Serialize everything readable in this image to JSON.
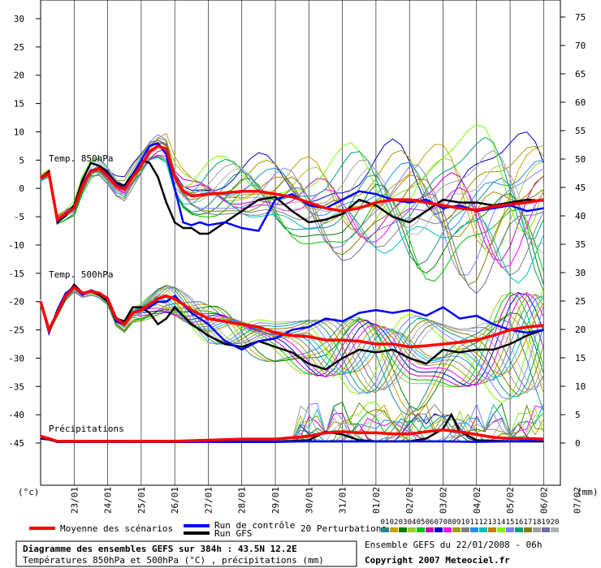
{
  "chart_data": {
    "type": "line",
    "title": "Diagramme des ensembles GEFS sur 384h : 43.5N 12.2E",
    "subtitle": "Températures 850hPa et 500hPa (°C) , précipitations (mm)",
    "run_info": "Ensemble GEFS du 22/01/2008 - 06h",
    "copyright": "Copyright 2007 Meteociel.fr",
    "left_axis_unit": "(°c)",
    "right_axis_unit": "(mm)",
    "left_ticks": [
      30,
      25,
      20,
      15,
      10,
      5,
      0,
      -5,
      -10,
      -15,
      -20,
      -25,
      -30,
      -35,
      -40,
      -45
    ],
    "right_ticks": [
      75,
      70,
      65,
      60,
      55,
      50,
      45,
      40,
      35,
      30,
      25,
      20,
      15,
      10,
      5,
      0
    ],
    "x_dates": [
      "23/01",
      "24/01",
      "25/01",
      "26/01",
      "27/01",
      "28/01",
      "29/01",
      "30/01",
      "31/01",
      "01/02",
      "02/02",
      "03/02",
      "04/02",
      "05/02",
      "06/02",
      "07/02"
    ],
    "panel_labels": [
      "Temp. 850hPa",
      "Temp. 500hPa",
      "Précipitations"
    ],
    "legend": {
      "mean": "Moyenne des scénarios",
      "control": "Run de contrôle",
      "gfs": "Run GFS",
      "perturbations": "20 Perturbations",
      "perturbation_ids": [
        "01",
        "02",
        "03",
        "04",
        "05",
        "06",
        "07",
        "08",
        "09",
        "10",
        "11",
        "12",
        "13",
        "14",
        "15",
        "16",
        "17",
        "18",
        "19",
        "20"
      ]
    },
    "colors": {
      "mean": "#ff0000",
      "control": "#0000ff",
      "gfs": "#000000",
      "perturbations": [
        "#228b8b",
        "#c8a000",
        "#008000",
        "#9acd32",
        "#00c800",
        "#c000c0",
        "#0000c8",
        "#ff00ff",
        "#a0a000",
        "#808080",
        "#1e90ff",
        "#00c0c0",
        "#c08000",
        "#7cfc00",
        "#8080ff",
        "#00a080",
        "#808000",
        "#a0a0a0",
        "#7070a0",
        "#b0b0b0"
      ]
    },
    "t850": {
      "mean": [
        [
          0,
          1.8
        ],
        [
          0.25,
          2.6
        ],
        [
          0.5,
          -5.5
        ],
        [
          0.75,
          -4.5
        ],
        [
          1,
          -3.5
        ],
        [
          1.25,
          0.5
        ],
        [
          1.5,
          3
        ],
        [
          1.75,
          3.5
        ],
        [
          2,
          2.2
        ],
        [
          2.25,
          0.5
        ],
        [
          2.5,
          -0.2
        ],
        [
          2.75,
          2
        ],
        [
          3,
          4
        ],
        [
          3.25,
          6.5
        ],
        [
          3.5,
          7.5
        ],
        [
          3.75,
          7
        ],
        [
          4,
          2
        ],
        [
          4.25,
          -0.5
        ],
        [
          4.5,
          -1.3
        ],
        [
          4.75,
          -1.2
        ],
        [
          5,
          -1
        ],
        [
          5.5,
          -0.8
        ],
        [
          6,
          -0.5
        ],
        [
          6.5,
          -0.5
        ],
        [
          7,
          -1
        ],
        [
          7.5,
          -1.5
        ],
        [
          8,
          -2.5
        ],
        [
          8.5,
          -3.5
        ],
        [
          9,
          -4
        ],
        [
          9.5,
          -3.5
        ],
        [
          10,
          -2.5
        ],
        [
          10.5,
          -2
        ],
        [
          11,
          -2
        ],
        [
          11.5,
          -2.5
        ],
        [
          12,
          -3
        ],
        [
          12.5,
          -3.5
        ],
        [
          13,
          -3.8
        ],
        [
          13.5,
          -3.2
        ],
        [
          14,
          -2.8
        ],
        [
          14.5,
          -2.5
        ],
        [
          15,
          -2
        ]
      ],
      "control": [
        [
          0,
          1.8
        ],
        [
          0.25,
          2.6
        ],
        [
          0.5,
          -5.8
        ],
        [
          0.75,
          -4.5
        ],
        [
          1,
          -3.5
        ],
        [
          1.25,
          0.8
        ],
        [
          1.5,
          3.2
        ],
        [
          1.75,
          3.5
        ],
        [
          2,
          2.5
        ],
        [
          2.25,
          0.8
        ],
        [
          2.5,
          0
        ],
        [
          2.75,
          2.2
        ],
        [
          3,
          5
        ],
        [
          3.25,
          7.5
        ],
        [
          3.5,
          8
        ],
        [
          3.75,
          6
        ],
        [
          4,
          0
        ],
        [
          4.25,
          -6
        ],
        [
          4.5,
          -6.5
        ],
        [
          4.75,
          -6
        ],
        [
          5,
          -6.5
        ],
        [
          5.5,
          -6
        ],
        [
          6,
          -7
        ],
        [
          6.5,
          -7.5
        ],
        [
          7,
          -2
        ],
        [
          7.5,
          -1
        ],
        [
          8,
          -3
        ],
        [
          8.5,
          -3.5
        ],
        [
          9,
          -2
        ],
        [
          9.5,
          -0.5
        ],
        [
          10,
          -1
        ],
        [
          10.5,
          -2
        ],
        [
          11,
          -2.5
        ],
        [
          11.5,
          -2
        ],
        [
          12,
          -3.5
        ],
        [
          12.5,
          -3
        ],
        [
          13,
          -4
        ],
        [
          13.5,
          -3.5
        ],
        [
          14,
          -3
        ],
        [
          14.5,
          -4
        ],
        [
          15,
          -3.5
        ]
      ],
      "gfs": [
        [
          0,
          1.8
        ],
        [
          0.25,
          3
        ],
        [
          0.5,
          -6
        ],
        [
          0.75,
          -4.8
        ],
        [
          1,
          -3
        ],
        [
          1.25,
          1.5
        ],
        [
          1.5,
          4.5
        ],
        [
          1.75,
          4
        ],
        [
          2,
          2.8
        ],
        [
          2.25,
          1
        ],
        [
          2.5,
          0.5
        ],
        [
          2.75,
          2.5
        ],
        [
          3,
          5
        ],
        [
          3.25,
          4.5
        ],
        [
          3.5,
          2
        ],
        [
          3.75,
          -2.5
        ],
        [
          4,
          -6
        ],
        [
          4.25,
          -7
        ],
        [
          4.5,
          -7
        ],
        [
          4.75,
          -8
        ],
        [
          5,
          -8
        ],
        [
          5.5,
          -6
        ],
        [
          6,
          -4
        ],
        [
          6.5,
          -2
        ],
        [
          7,
          -1.5
        ],
        [
          7.5,
          -4
        ],
        [
          8,
          -6
        ],
        [
          8.5,
          -5.5
        ],
        [
          9,
          -4.5
        ],
        [
          9.5,
          -2
        ],
        [
          10,
          -3
        ],
        [
          10.5,
          -5
        ],
        [
          11,
          -6
        ],
        [
          11.5,
          -4
        ],
        [
          12,
          -2
        ],
        [
          12.5,
          -2.5
        ],
        [
          13,
          -2.5
        ],
        [
          13.5,
          -3
        ],
        [
          14,
          -2.5
        ],
        [
          14.5,
          -2
        ],
        [
          15,
          -2.2
        ]
      ]
    },
    "t500": {
      "mean": [
        [
          0,
          -20
        ],
        [
          0.25,
          -25
        ],
        [
          0.5,
          -22
        ],
        [
          0.75,
          -19
        ],
        [
          1,
          -17.5
        ],
        [
          1.25,
          -18.5
        ],
        [
          1.5,
          -18.2
        ],
        [
          1.75,
          -18.5
        ],
        [
          2,
          -19.5
        ],
        [
          2.25,
          -23
        ],
        [
          2.5,
          -24
        ],
        [
          2.75,
          -22
        ],
        [
          3,
          -21.5
        ],
        [
          3.25,
          -20.5
        ],
        [
          3.5,
          -19.5
        ],
        [
          3.75,
          -19
        ],
        [
          4,
          -19.5
        ],
        [
          4.5,
          -21.5
        ],
        [
          5,
          -23
        ],
        [
          5.5,
          -23.5
        ],
        [
          6,
          -24
        ],
        [
          6.5,
          -24.5
        ],
        [
          7,
          -25.5
        ],
        [
          7.5,
          -26
        ],
        [
          8,
          -26.2
        ],
        [
          8.5,
          -26.8
        ],
        [
          9,
          -26.8
        ],
        [
          9.5,
          -27
        ],
        [
          10,
          -27.5
        ],
        [
          10.5,
          -27.5
        ],
        [
          11,
          -28
        ],
        [
          11.5,
          -27.8
        ],
        [
          12,
          -27.5
        ],
        [
          12.5,
          -27.2
        ],
        [
          13,
          -26.8
        ],
        [
          13.5,
          -26
        ],
        [
          14,
          -25
        ],
        [
          14.5,
          -24.5
        ],
        [
          15,
          -24.2
        ]
      ],
      "control": [
        [
          0,
          -20
        ],
        [
          0.25,
          -25.5
        ],
        [
          0.5,
          -21.5
        ],
        [
          0.75,
          -18.5
        ],
        [
          1,
          -17.5
        ],
        [
          1.25,
          -18.8
        ],
        [
          1.5,
          -18
        ],
        [
          1.75,
          -18.5
        ],
        [
          2,
          -19.5
        ],
        [
          2.25,
          -23.5
        ],
        [
          2.5,
          -24
        ],
        [
          2.75,
          -22
        ],
        [
          3,
          -21.5
        ],
        [
          3.25,
          -21
        ],
        [
          3.5,
          -20
        ],
        [
          3.75,
          -20
        ],
        [
          4,
          -19
        ],
        [
          4.5,
          -22
        ],
        [
          5,
          -24
        ],
        [
          5.5,
          -27
        ],
        [
          6,
          -28.5
        ],
        [
          6.5,
          -27
        ],
        [
          7,
          -26.5
        ],
        [
          7.5,
          -25
        ],
        [
          8,
          -24.5
        ],
        [
          8.5,
          -23
        ],
        [
          9,
          -23.5
        ],
        [
          9.5,
          -22
        ],
        [
          10,
          -21.5
        ],
        [
          10.5,
          -22
        ],
        [
          11,
          -21.5
        ],
        [
          11.5,
          -22.5
        ],
        [
          12,
          -21
        ],
        [
          12.5,
          -23
        ],
        [
          13,
          -22.5
        ],
        [
          13.5,
          -24
        ],
        [
          14,
          -25
        ],
        [
          14.5,
          -25.5
        ],
        [
          15,
          -25
        ]
      ],
      "gfs": [
        [
          0,
          -20
        ],
        [
          0.25,
          -25
        ],
        [
          0.5,
          -22
        ],
        [
          0.75,
          -19.2
        ],
        [
          1,
          -17
        ],
        [
          1.25,
          -18.5
        ],
        [
          1.5,
          -18.2
        ],
        [
          1.75,
          -18.8
        ],
        [
          2,
          -20
        ],
        [
          2.25,
          -23
        ],
        [
          2.5,
          -23.5
        ],
        [
          2.75,
          -21
        ],
        [
          3,
          -21
        ],
        [
          3.25,
          -22
        ],
        [
          3.5,
          -24
        ],
        [
          3.75,
          -23
        ],
        [
          4,
          -21
        ],
        [
          4.5,
          -24
        ],
        [
          5,
          -26
        ],
        [
          5.5,
          -27.5
        ],
        [
          6,
          -28
        ],
        [
          6.5,
          -27
        ],
        [
          7,
          -28
        ],
        [
          7.5,
          -29
        ],
        [
          8,
          -31
        ],
        [
          8.5,
          -32
        ],
        [
          9,
          -30
        ],
        [
          9.5,
          -28.5
        ],
        [
          10,
          -29
        ],
        [
          10.5,
          -28.5
        ],
        [
          11,
          -30
        ],
        [
          11.5,
          -31
        ],
        [
          12,
          -28.5
        ],
        [
          12.5,
          -29
        ],
        [
          13,
          -28.5
        ],
        [
          13.5,
          -28.5
        ],
        [
          14,
          -27.5
        ],
        [
          14.5,
          -26
        ],
        [
          15,
          -25
        ]
      ]
    },
    "precip": {
      "mean": [
        [
          0,
          1.2
        ],
        [
          0.25,
          0.8
        ],
        [
          0.5,
          0.3
        ],
        [
          1,
          0.3
        ],
        [
          2,
          0.3
        ],
        [
          3,
          0.3
        ],
        [
          4,
          0.3
        ],
        [
          5,
          0.5
        ],
        [
          6,
          0.7
        ],
        [
          7,
          0.7
        ],
        [
          8,
          1.2
        ],
        [
          8.5,
          1.8
        ],
        [
          9,
          2
        ],
        [
          9.5,
          1.8
        ],
        [
          10,
          1.8
        ],
        [
          10.5,
          1.6
        ],
        [
          11,
          1.6
        ],
        [
          11.5,
          2
        ],
        [
          12,
          2.3
        ],
        [
          12.5,
          2
        ],
        [
          13,
          1.5
        ],
        [
          13.5,
          1
        ],
        [
          14,
          0.8
        ],
        [
          14.5,
          0.8
        ],
        [
          15,
          0.7
        ]
      ],
      "control": [
        [
          0,
          1
        ],
        [
          0.25,
          0.7
        ],
        [
          0.5,
          0.2
        ],
        [
          1,
          0.2
        ],
        [
          2,
          0.2
        ],
        [
          3,
          0.2
        ],
        [
          4,
          0.2
        ],
        [
          5,
          0.2
        ],
        [
          6,
          0.2
        ],
        [
          7,
          0.2
        ],
        [
          8,
          0.3
        ],
        [
          9,
          0.3
        ],
        [
          10,
          0.3
        ],
        [
          11,
          0.3
        ],
        [
          12,
          0.3
        ],
        [
          13,
          0.2
        ],
        [
          14,
          0.3
        ],
        [
          15,
          0.5
        ]
      ],
      "gfs": [
        [
          0,
          0.8
        ],
        [
          0.25,
          0.6
        ],
        [
          0.5,
          0.2
        ],
        [
          1,
          0.2
        ],
        [
          2,
          0.2
        ],
        [
          3,
          0.2
        ],
        [
          4,
          0.2
        ],
        [
          5,
          0.2
        ],
        [
          6,
          0.2
        ],
        [
          7,
          0.2
        ],
        [
          8,
          0.5
        ],
        [
          8.5,
          2
        ],
        [
          9,
          1.5
        ],
        [
          9.5,
          0.5
        ],
        [
          10,
          0.3
        ],
        [
          11,
          0.3
        ],
        [
          11.5,
          0.8
        ],
        [
          12,
          2.5
        ],
        [
          12.25,
          5
        ],
        [
          12.5,
          2
        ],
        [
          13,
          0.5
        ],
        [
          14,
          0.3
        ],
        [
          15,
          0.3
        ]
      ]
    }
  }
}
